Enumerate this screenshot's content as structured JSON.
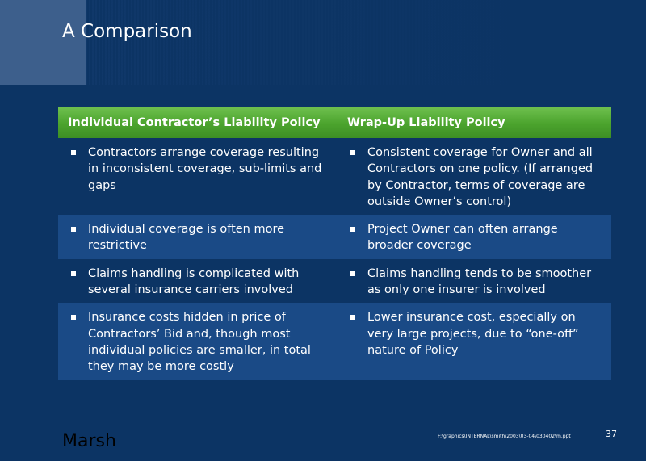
{
  "slide": {
    "title": "A Comparison",
    "brand": "Marsh",
    "file_path": "F:\\graphics\\INTERNAL\\smith\\2003\\03-04\\030402\\m.ppt",
    "page_number": "37"
  },
  "table": {
    "headers": [
      "Individual Contractor’s Liability Policy",
      "Wrap-Up Liability Policy"
    ],
    "rows": [
      [
        "Contractors arrange coverage resulting in inconsistent coverage, sub-limits and gaps",
        "Consistent coverage for Owner and all Contractors on one policy. (If arranged by Contractor, terms of coverage are outside Owner’s control)"
      ],
      [
        "Individual coverage is often more restrictive",
        "Project Owner can often arrange broader coverage"
      ],
      [
        "Claims handling is complicated with several insurance carriers involved",
        "Claims handling tends to be smoother as only one insurer is involved"
      ],
      [
        "Insurance costs hidden in price of Contractors’ Bid and, though most individual policies are smaller, in total they may be more costly",
        "Lower insurance cost, especially on very large projects, due to “one-off” nature of Policy"
      ]
    ]
  },
  "colors": {
    "background": "#0c3464",
    "header_green": "#4ba32d",
    "row_alt": "#1a4a86"
  }
}
